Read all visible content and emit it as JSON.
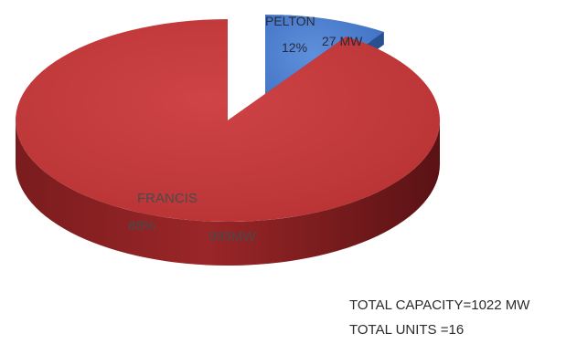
{
  "chart_data": {
    "type": "pie",
    "style": "3d-exploded",
    "slices": [
      {
        "label": "FRANCIS",
        "percent_label": "88%",
        "value_label": "995MW",
        "value": 995,
        "color": "#c0393b"
      },
      {
        "label": "PELTON",
        "percent_label": "12%",
        "value_label": "27 MW",
        "value": 27,
        "color": "#3f73c8"
      }
    ],
    "legend": "none"
  },
  "footnotes": {
    "total_capacity": "TOTAL CAPACITY=1022  MW",
    "total_units": "TOTAL UNITS =16"
  }
}
